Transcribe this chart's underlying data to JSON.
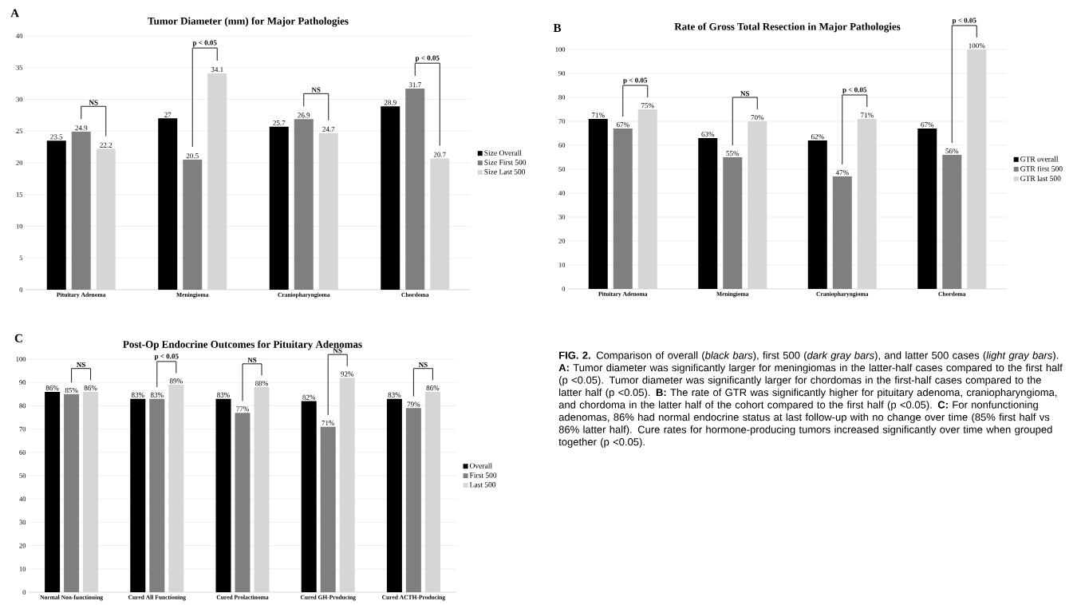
{
  "chart_data": [
    {
      "type": "bar",
      "title": "Tumor Diameter (mm) for Major Pathologies",
      "categories": [
        "Pituitary Adenoma",
        "Meningioma",
        "Craniopharyngioma",
        "Chordoma"
      ],
      "series": [
        {
          "name": "Size Overall",
          "color": "#000000",
          "values": [
            23.5,
            27,
            25.7,
            28.9
          ]
        },
        {
          "name": "Size First 500",
          "color": "#7f7f7f",
          "values": [
            24.9,
            20.5,
            26.9,
            31.7
          ]
        },
        {
          "name": "Size Last 500",
          "color": "#d6d6d6",
          "values": [
            22.2,
            34.1,
            24.7,
            20.7
          ]
        }
      ],
      "ylim": [
        0,
        40
      ],
      "yticks": [
        0,
        5,
        10,
        15,
        20,
        25,
        30,
        35,
        40
      ],
      "grid": "y",
      "legend": "right",
      "data_labels": true,
      "annotations": [
        "A",
        "NS",
        "p < 0.05",
        "NS",
        "p < 0.05"
      ]
    },
    {
      "type": "bar",
      "title": "Rate of Gross Total Resection in Major Pathologies",
      "categories": [
        "Pituitary Adenoma",
        "Meningioma",
        "Craniopharyngioma",
        "Chordoma"
      ],
      "series": [
        {
          "name": "GTR overall",
          "color": "#000000",
          "values": [
            71,
            63,
            62,
            67
          ],
          "value_labels": [
            "71%",
            "63%",
            "62%",
            "67%"
          ]
        },
        {
          "name": "GTR first 500",
          "color": "#7f7f7f",
          "values": [
            67,
            55,
            47,
            56
          ],
          "value_labels": [
            "67%",
            "55%",
            "47%",
            "56%"
          ]
        },
        {
          "name": "GTR last 500",
          "color": "#d6d6d6",
          "values": [
            75,
            70,
            71,
            100
          ],
          "value_labels": [
            "75%",
            "70%",
            "71%",
            "100%"
          ]
        }
      ],
      "ylim": [
        0,
        100
      ],
      "yticks": [
        0,
        10,
        20,
        30,
        40,
        50,
        60,
        70,
        80,
        90,
        100
      ],
      "grid": "y",
      "legend": "right",
      "annotations": [
        "B",
        "p < 0.05",
        "NS",
        "p < 0.05",
        "p < 0.05"
      ]
    },
    {
      "type": "bar",
      "title": "Post-Op Endocrine Outcomes for Pituitary Adenomas",
      "categories": [
        "Normal Non-functioning",
        "Cured All Functioning",
        "Cured Prolactinoma",
        "Cured GH-Producing",
        "Cured ACTH-Producing"
      ],
      "series": [
        {
          "name": "Overall",
          "color": "#000000",
          "values": [
            86,
            83,
            83,
            82,
            83
          ],
          "value_labels": [
            "86%",
            "83%",
            "83%",
            "82%",
            "83%"
          ]
        },
        {
          "name": "First 500",
          "color": "#7f7f7f",
          "values": [
            85,
            83,
            77,
            71,
            79
          ],
          "value_labels": [
            "85%",
            "83%",
            "77%",
            "71%",
            "79%"
          ]
        },
        {
          "name": "Last 500",
          "color": "#d6d6d6",
          "values": [
            86,
            89,
            88,
            92,
            86
          ],
          "value_labels": [
            "86%",
            "89%",
            "88%",
            "92%",
            "86%"
          ]
        }
      ],
      "ylim": [
        0,
        100
      ],
      "yticks": [
        0,
        10,
        20,
        30,
        40,
        50,
        60,
        70,
        80,
        90,
        100
      ],
      "grid": "y",
      "legend": "right",
      "annotations": [
        "C",
        "NS",
        "p < 0.05",
        "NS",
        "NS",
        "NS"
      ]
    },
    {
      "type": "other",
      "annotations": [
        "**FIG. 2.** Comparison of overall (*black bars*), first 500 (*dark gray bars*), and latter 500 cases (*light gray bars*). **A:** Tumor diameter was significantly larger for meningiomas in the latter-half cases compared to the first half (p <0.05). Tumor diameter was significantly larger for chordomas in the first-half cases compared to the latter half (p <0.05). **B:** The rate of GTR was significantly higher for pituitary adenoma, craniopharyngioma, and chordoma in the latter half of the cohort compared to the first half (p <0.05). **C:** For nonfunctioning adenomas, 86% had normal endocrine status at last follow-up with no change over time (85% first half vs 86% latter half). Cure rates for hormone-producing tumors increased significantly over time when grouped together (p <0.05)."
      ]
    }
  ]
}
